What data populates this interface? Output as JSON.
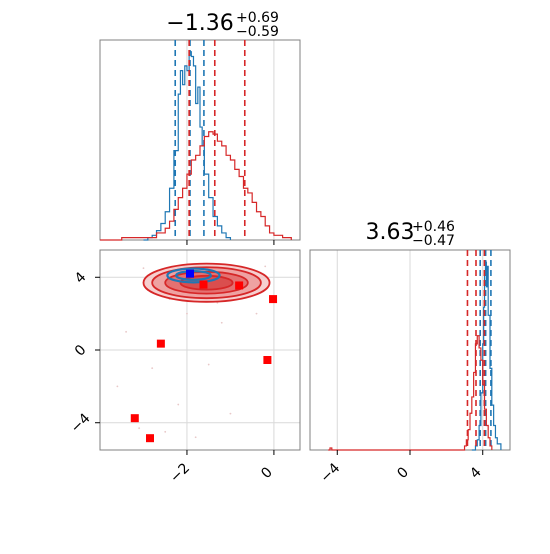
{
  "chart_data": [
    {
      "type": "histogram",
      "panel": "top-left",
      "title": {
        "value": "−1.36",
        "plus": "+0.69",
        "minus": "−0.59"
      },
      "xlim": [
        -4.0,
        0.6
      ],
      "x_ticks": [
        -2,
        0
      ],
      "series": [
        {
          "name": "",
          "color": "#1f77b4",
          "style": "step",
          "values": [
            [
              -3.0,
              0.0
            ],
            [
              -2.9,
              0.01
            ],
            [
              -2.8,
              0.02
            ],
            [
              -2.7,
              0.04
            ],
            [
              -2.6,
              0.07
            ],
            [
              -2.5,
              0.12
            ],
            [
              -2.4,
              0.22
            ],
            [
              -2.3,
              0.38
            ],
            [
              -2.2,
              0.62
            ],
            [
              -2.15,
              0.72
            ],
            [
              -2.1,
              0.66
            ],
            [
              -2.05,
              0.74
            ],
            [
              -2.0,
              0.72
            ],
            [
              -1.95,
              0.8
            ],
            [
              -1.9,
              0.78
            ],
            [
              -1.85,
              0.74
            ],
            [
              -1.8,
              0.58
            ],
            [
              -1.75,
              0.65
            ],
            [
              -1.7,
              0.48
            ],
            [
              -1.65,
              0.4
            ],
            [
              -1.6,
              0.28
            ],
            [
              -1.5,
              0.18
            ],
            [
              -1.4,
              0.1
            ],
            [
              -1.3,
              0.06
            ],
            [
              -1.2,
              0.03
            ],
            [
              -1.1,
              0.01
            ],
            [
              -1.0,
              0.0
            ]
          ],
          "quantiles": [
            -2.27,
            -1.93,
            -1.61
          ]
        },
        {
          "name": "",
          "color": "#d62728",
          "style": "step",
          "values": [
            [
              -4.0,
              0.0
            ],
            [
              -3.5,
              0.01
            ],
            [
              -3.0,
              0.01
            ],
            [
              -2.7,
              0.03
            ],
            [
              -2.5,
              0.05
            ],
            [
              -2.4,
              0.08
            ],
            [
              -2.3,
              0.13
            ],
            [
              -2.2,
              0.18
            ],
            [
              -2.1,
              0.22
            ],
            [
              -2.0,
              0.28
            ],
            [
              -1.9,
              0.34
            ],
            [
              -1.8,
              0.36
            ],
            [
              -1.7,
              0.4
            ],
            [
              -1.6,
              0.44
            ],
            [
              -1.5,
              0.46
            ],
            [
              -1.4,
              0.45
            ],
            [
              -1.3,
              0.42
            ],
            [
              -1.2,
              0.4
            ],
            [
              -1.1,
              0.36
            ],
            [
              -1.0,
              0.34
            ],
            [
              -0.9,
              0.3
            ],
            [
              -0.8,
              0.27
            ],
            [
              -0.7,
              0.22
            ],
            [
              -0.6,
              0.2
            ],
            [
              -0.5,
              0.16
            ],
            [
              -0.4,
              0.12
            ],
            [
              -0.3,
              0.1
            ],
            [
              -0.2,
              0.06
            ],
            [
              -0.1,
              0.03
            ],
            [
              0.0,
              0.02
            ],
            [
              0.2,
              0.01
            ],
            [
              0.4,
              0.0
            ]
          ],
          "quantiles": [
            -1.95,
            -1.36,
            -0.67
          ]
        }
      ]
    },
    {
      "type": "contour-scatter",
      "panel": "bottom-left",
      "xlim": [
        -4.0,
        0.6
      ],
      "ylim": [
        -5.5,
        5.5
      ],
      "x_ticks": [
        -2,
        0
      ],
      "y_ticks": [
        -4,
        0,
        4
      ],
      "x_tick_labels": [
        "−2",
        "0"
      ],
      "y_tick_labels": [
        "−4",
        "0",
        "4"
      ],
      "contours": [
        {
          "color": "#d62728",
          "center": [
            -1.55,
            3.7
          ],
          "radii": [
            [
              1.45,
              1.05
            ],
            [
              1.25,
              0.85
            ],
            [
              0.95,
              0.6
            ],
            [
              0.6,
              0.38
            ]
          ]
        },
        {
          "color": "#1f77b4",
          "center": [
            -1.85,
            4.1
          ],
          "radii": [
            [
              0.6,
              0.38
            ],
            [
              0.4,
              0.24
            ]
          ]
        }
      ],
      "markers": [
        {
          "color": "#0000ff",
          "x": -1.93,
          "y": 4.2
        },
        {
          "color": "#ff0000",
          "x": -1.62,
          "y": 3.6
        },
        {
          "color": "#ff0000",
          "x": -0.8,
          "y": 3.55
        },
        {
          "color": "#ff0000",
          "x": -0.02,
          "y": 2.8
        },
        {
          "color": "#ff0000",
          "x": -2.6,
          "y": 0.35
        },
        {
          "color": "#ff0000",
          "x": -0.15,
          "y": -0.55
        },
        {
          "color": "#ff0000",
          "x": -3.2,
          "y": -3.75
        },
        {
          "color": "#ff0000",
          "x": -2.85,
          "y": -4.85
        }
      ]
    },
    {
      "type": "histogram",
      "panel": "bottom-right",
      "title": {
        "value": "3.63",
        "plus": "+0.46",
        "minus": "−0.47"
      },
      "xlim": [
        -5.5,
        5.5
      ],
      "x_ticks": [
        -4,
        0,
        4
      ],
      "x_tick_labels": [
        "−4",
        "0",
        "4"
      ],
      "series": [
        {
          "name": "",
          "color": "#1f77b4",
          "style": "step",
          "values": [
            [
              3.4,
              0.0
            ],
            [
              3.6,
              0.02
            ],
            [
              3.7,
              0.05
            ],
            [
              3.8,
              0.12
            ],
            [
              3.9,
              0.28
            ],
            [
              4.0,
              0.52
            ],
            [
              4.05,
              0.7
            ],
            [
              4.1,
              0.86
            ],
            [
              4.15,
              0.92
            ],
            [
              4.2,
              0.8
            ],
            [
              4.25,
              0.9
            ],
            [
              4.3,
              0.66
            ],
            [
              4.4,
              0.4
            ],
            [
              4.5,
              0.22
            ],
            [
              4.6,
              0.12
            ],
            [
              4.7,
              0.06
            ],
            [
              4.8,
              0.03
            ],
            [
              5.0,
              0.0
            ]
          ],
          "quantiles": [
            3.86,
            4.16,
            4.45
          ]
        },
        {
          "name": "",
          "color": "#d62728",
          "style": "step",
          "values": [
            [
              -4.5,
              0.0
            ],
            [
              -4.4,
              0.01
            ],
            [
              -4.3,
              0.0
            ],
            [
              2.8,
              0.0
            ],
            [
              3.0,
              0.02
            ],
            [
              3.1,
              0.05
            ],
            [
              3.2,
              0.1
            ],
            [
              3.3,
              0.18
            ],
            [
              3.4,
              0.26
            ],
            [
              3.5,
              0.38
            ],
            [
              3.6,
              0.52
            ],
            [
              3.7,
              0.56
            ],
            [
              3.8,
              0.5
            ],
            [
              3.9,
              0.44
            ],
            [
              4.0,
              0.32
            ],
            [
              4.1,
              0.2
            ],
            [
              4.2,
              0.12
            ],
            [
              4.3,
              0.06
            ],
            [
              4.4,
              0.02
            ],
            [
              4.5,
              0.0
            ]
          ],
          "quantiles": [
            3.16,
            3.63,
            4.09
          ]
        }
      ]
    }
  ]
}
